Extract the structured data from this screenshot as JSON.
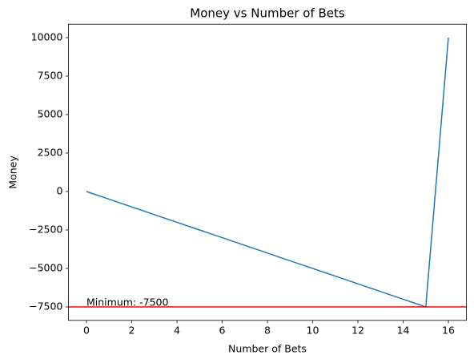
{
  "chart_data": {
    "type": "line",
    "title": "Money vs Number of Bets",
    "x_label": "Number of Bets",
    "y_label": "Money",
    "x": [
      0,
      1,
      2,
      3,
      4,
      5,
      6,
      7,
      8,
      9,
      10,
      11,
      12,
      13,
      14,
      15,
      16
    ],
    "series": [
      {
        "name": "Money",
        "color": "#1f77b4",
        "values": [
          0,
          -500,
          -1000,
          -1500,
          -2000,
          -2500,
          -3000,
          -3500,
          -4000,
          -4500,
          -5000,
          -5500,
          -6000,
          -6500,
          -7000,
          -7500,
          10000
        ]
      }
    ],
    "hline": {
      "value": -7500,
      "color": "#ff0000"
    },
    "annotation": {
      "text": "Minimum: -7500",
      "x": 0,
      "y": -7500
    },
    "xlim": [
      -0.8,
      16.8
    ],
    "xticks": [
      0,
      2,
      4,
      6,
      8,
      10,
      12,
      14,
      16
    ],
    "ylim": [
      -8375,
      10875
    ],
    "yticks": [
      {
        "value": -7500,
        "label": "−7500"
      },
      {
        "value": -5000,
        "label": "−5000"
      },
      {
        "value": -2500,
        "label": "−2500"
      },
      0,
      2500,
      5000,
      7500,
      10000
    ],
    "grid": false
  }
}
